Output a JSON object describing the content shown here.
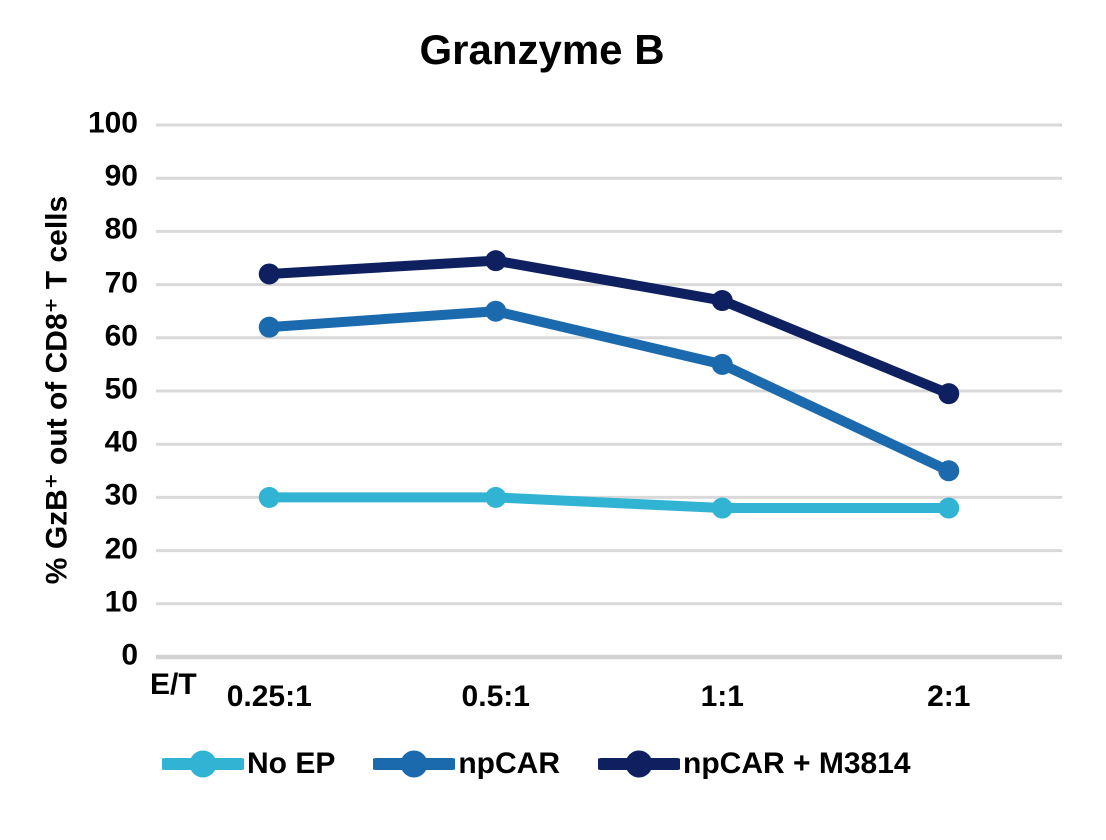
{
  "chart_data": {
    "type": "line",
    "title": "Granzyme B",
    "ylabel": "% GzB⁺ out of CD8⁺ T cells",
    "xlabel": "E/T",
    "categories": [
      "0.25:1",
      "0.5:1",
      "1:1",
      "2:1"
    ],
    "series": [
      {
        "name": "No EP",
        "color": "#31b4d4",
        "values": [
          30,
          30,
          28,
          28
        ]
      },
      {
        "name": "npCAR",
        "color": "#1b6aae",
        "values": [
          62,
          65,
          55,
          35
        ]
      },
      {
        "name": "npCAR + M3814",
        "color": "#0f2061",
        "values": [
          72,
          74.5,
          67,
          49.5
        ]
      }
    ],
    "ylim": [
      0,
      100
    ],
    "ytick_step": 10,
    "grid": true,
    "grid_color": "#d9d9d9",
    "baseline_color": "#d2d2d2",
    "text_color": "#000000",
    "legend_position": "bottom"
  }
}
